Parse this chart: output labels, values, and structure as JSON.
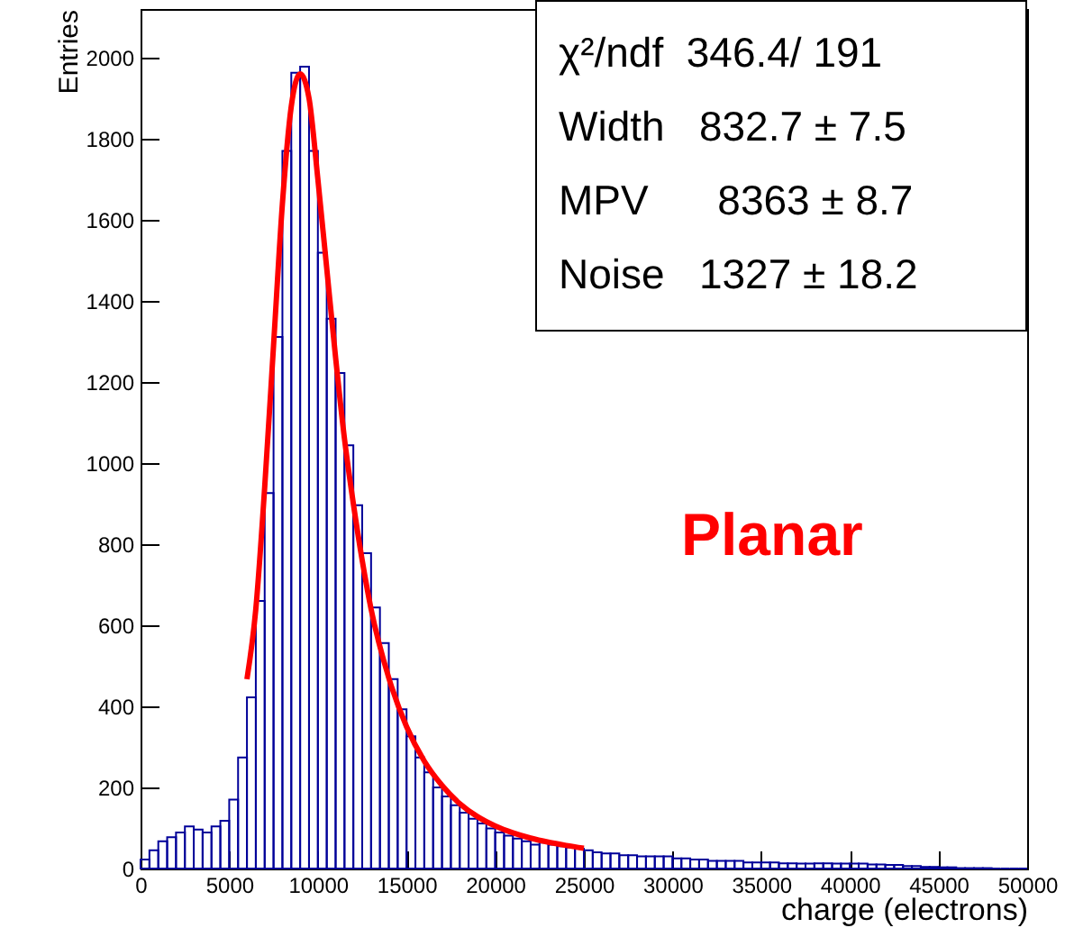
{
  "chart_data": {
    "type": "histogram",
    "xlabel": "charge (electrons)",
    "ylabel": "Entries",
    "bins": [
      0,
      500,
      1000,
      1500,
      2000,
      2500,
      3000,
      3500,
      4000,
      4500,
      5000,
      5500,
      6000,
      6500,
      7000,
      7500,
      8000,
      8500,
      9000,
      9500,
      10000,
      10500,
      11000,
      11500,
      12000,
      12500,
      13000,
      13500,
      14000,
      14500,
      15000,
      15500,
      16000,
      16500,
      17000,
      17500,
      18000,
      18500,
      19000,
      19500,
      20000,
      20500,
      21000,
      21500,
      22000,
      22500,
      23000,
      23500,
      24000,
      24500,
      25000,
      25500,
      26000,
      26500,
      27000,
      27500,
      28000,
      28500,
      29000,
      29500,
      30000,
      30500,
      31000,
      31500,
      32000,
      32500,
      33000,
      33500,
      34000,
      34500,
      35000,
      35500,
      36000,
      36500,
      37000,
      37500,
      38000,
      38500,
      39000,
      39500,
      40000,
      40500,
      41000,
      41500,
      42000,
      42500,
      43000,
      43500,
      44000,
      44500,
      45000,
      45500,
      46000,
      46500,
      47000,
      47500,
      48000,
      48500,
      49000,
      49500,
      50000
    ],
    "series": [
      {
        "color": "#000099",
        "values": [
          22,
          45,
          67,
          77,
          89,
          104,
          96,
          89,
          104,
          118,
          170,
          274,
          422,
          660,
          926,
          1311,
          1770,
          1963,
          1978,
          1770,
          1519,
          1356,
          1222,
          1044,
          896,
          778,
          644,
          556,
          467,
          393,
          326,
          274,
          237,
          200,
          178,
          156,
          138,
          123,
          111,
          99,
          89,
          81,
          74,
          67,
          59,
          64,
          59,
          55,
          52,
          49,
          45,
          40,
          37,
          37,
          33,
          33,
          30,
          30,
          30,
          30,
          25,
          25,
          22,
          22,
          19,
          19,
          19,
          19,
          15,
          15,
          15,
          15,
          13,
          13,
          12,
          12,
          13,
          13,
          12,
          12,
          12,
          12,
          10,
          10,
          9,
          9,
          6,
          6,
          4,
          4,
          3,
          3,
          1,
          1,
          1,
          1,
          0,
          0,
          0,
          0
        ]
      },
      {
        "type": "line",
        "color": "#ff0000",
        "x": [
          6000,
          6500,
          7000,
          7500,
          8000,
          8500,
          9000,
          9500,
          10000,
          10500,
          11000,
          11500,
          12000,
          12500,
          13000,
          14000,
          15000,
          16000,
          17000,
          18000,
          19000,
          20000,
          21000,
          22000,
          23000,
          24000,
          25000
        ],
        "values": [
          467,
          640,
          940,
          1290,
          1640,
          1880,
          1960,
          1900,
          1700,
          1480,
          1260,
          1060,
          900,
          760,
          640,
          470,
          350,
          265,
          205,
          160,
          128,
          105,
          88,
          75,
          65,
          57,
          50
        ]
      }
    ],
    "xlim": [
      0,
      50000
    ],
    "xticks": [
      0,
      5000,
      10000,
      15000,
      20000,
      25000,
      30000,
      35000,
      40000,
      45000,
      50000
    ],
    "ylim": [
      0,
      2120
    ],
    "yticks": [
      0,
      200,
      400,
      600,
      800,
      1000,
      1200,
      1400,
      1600,
      1800,
      2000
    ],
    "grid": false,
    "annotations": [
      "χ²/ndf  346.4/ 191",
      "Width   832.7 ± 7.5",
      "MPV      8363 ± 8.7",
      "Noise   1327 ± 18.2",
      "Planar"
    ]
  }
}
